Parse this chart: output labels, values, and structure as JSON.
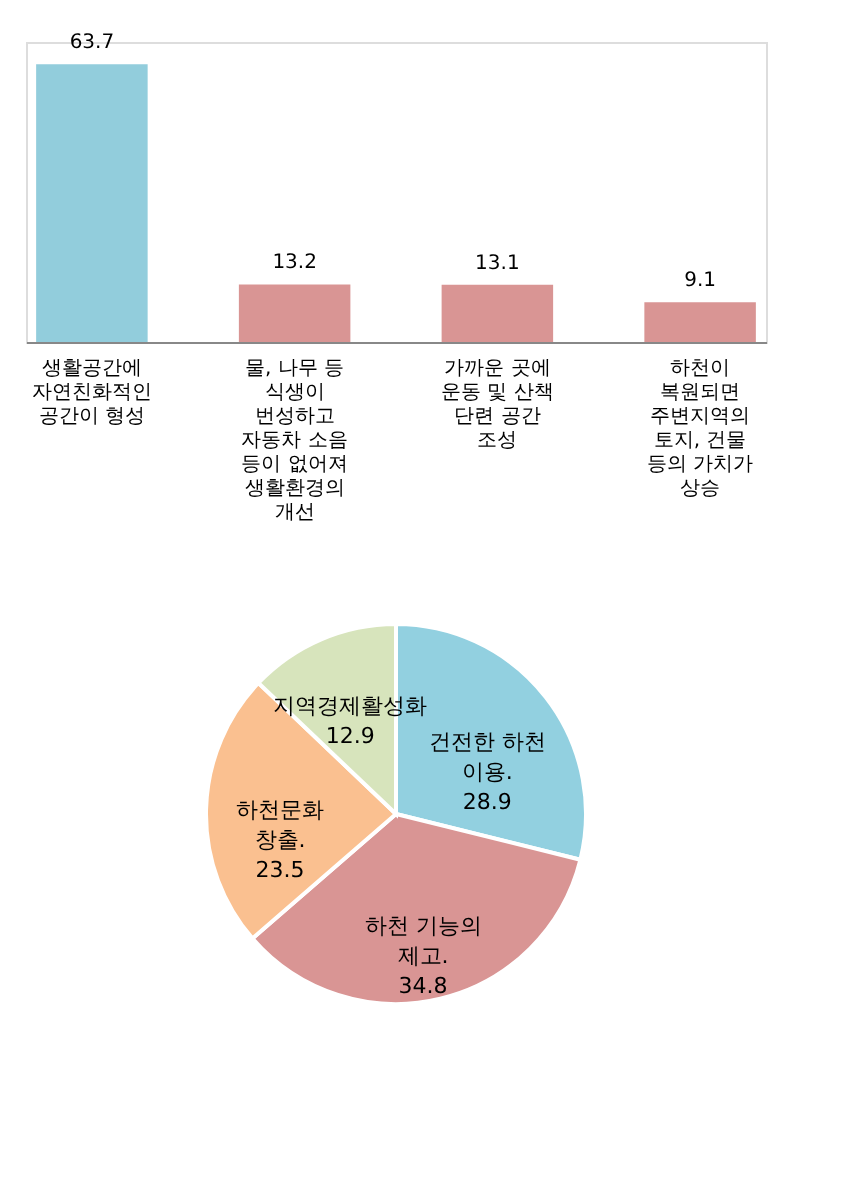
{
  "chart_data": [
    {
      "type": "bar",
      "data_labels": true,
      "categories": [
        "생활공간에 자연친화적인 공간이 형성",
        "물, 나무 등 식생이 번성하고 자동차 소음 등이 없어져 생활환경의 개선",
        "가까운 곳에 운동 및 산책 단련 공간 조성",
        "하천이 복원되면 주변지역의 토지, 건물 등의 가치가 상승"
      ],
      "values": [
        63.7,
        13.2,
        13.1,
        9.1
      ],
      "colors": [
        "#92cddc",
        "#d99594",
        "#d99594",
        "#d99594"
      ]
    },
    {
      "type": "pie",
      "categories": [
        "건전한 하천 이용.",
        "하천 기능의 제고.",
        "하천문화 창출.",
        "지역경제활성화"
      ],
      "values": [
        28.9,
        34.8,
        23.5,
        12.9
      ],
      "colors": [
        "#92d0e0",
        "#d99594",
        "#fac090",
        "#d7e4bc"
      ],
      "data_labels": true
    }
  ]
}
